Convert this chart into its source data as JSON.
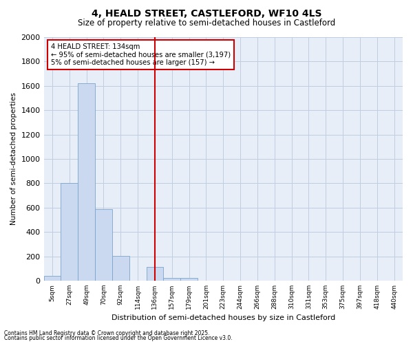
{
  "title1": "4, HEALD STREET, CASTLEFORD, WF10 4LS",
  "title2": "Size of property relative to semi-detached houses in Castleford",
  "xlabel": "Distribution of semi-detached houses by size in Castleford",
  "ylabel": "Number of semi-detached properties",
  "bar_labels": [
    "5sqm",
    "27sqm",
    "49sqm",
    "70sqm",
    "92sqm",
    "114sqm",
    "136sqm",
    "157sqm",
    "179sqm",
    "201sqm",
    "223sqm",
    "244sqm",
    "266sqm",
    "288sqm",
    "310sqm",
    "331sqm",
    "353sqm",
    "375sqm",
    "397sqm",
    "418sqm",
    "440sqm"
  ],
  "bar_values": [
    40,
    800,
    1620,
    590,
    205,
    0,
    115,
    25,
    20,
    0,
    0,
    0,
    0,
    0,
    0,
    0,
    0,
    0,
    0,
    0,
    0
  ],
  "bar_color": "#cad9f0",
  "bar_edge_color": "#7aa4cc",
  "vline_color": "#cc0000",
  "vline_pos": 6,
  "ylim": [
    0,
    2000
  ],
  "yticks": [
    0,
    200,
    400,
    600,
    800,
    1000,
    1200,
    1400,
    1600,
    1800,
    2000
  ],
  "annotation_title": "4 HEALD STREET: 134sqm",
  "annotation_line1": "← 95% of semi-detached houses are smaller (3,197)",
  "annotation_line2": "5% of semi-detached houses are larger (157) →",
  "footer1": "Contains HM Land Registry data © Crown copyright and database right 2025.",
  "footer2": "Contains public sector information licensed under the Open Government Licence v3.0.",
  "bg_color": "#ffffff",
  "plot_bg_color": "#e8eef8",
  "grid_color": "#c0cce0"
}
